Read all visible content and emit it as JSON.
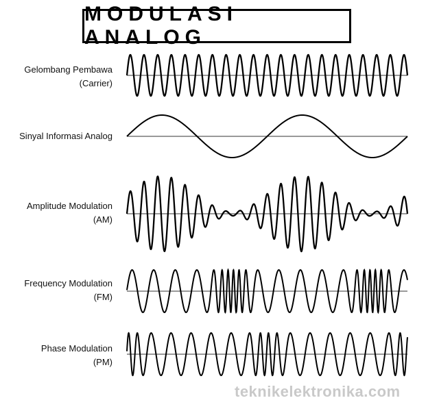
{
  "title": "MODULASI ANALOG",
  "rows": [
    {
      "id": "carrier",
      "line1": "Gelombang Pembawa",
      "line2": "(Carrier)"
    },
    {
      "id": "info",
      "line1": "Sinyal Informasi Analog",
      "line2": ""
    },
    {
      "id": "am",
      "line1": "Amplitude Modulation",
      "line2": "(AM)"
    },
    {
      "id": "fm",
      "line1": "Frequency Modulation",
      "line2": "(FM)"
    },
    {
      "id": "pm",
      "line1": "Phase Modulation",
      "line2": "(PM)"
    }
  ],
  "watermark": "teknikelektronika.com",
  "colors": {
    "stroke": "#000000",
    "axis": "#333333",
    "watermark": "#c9c9c9"
  }
}
